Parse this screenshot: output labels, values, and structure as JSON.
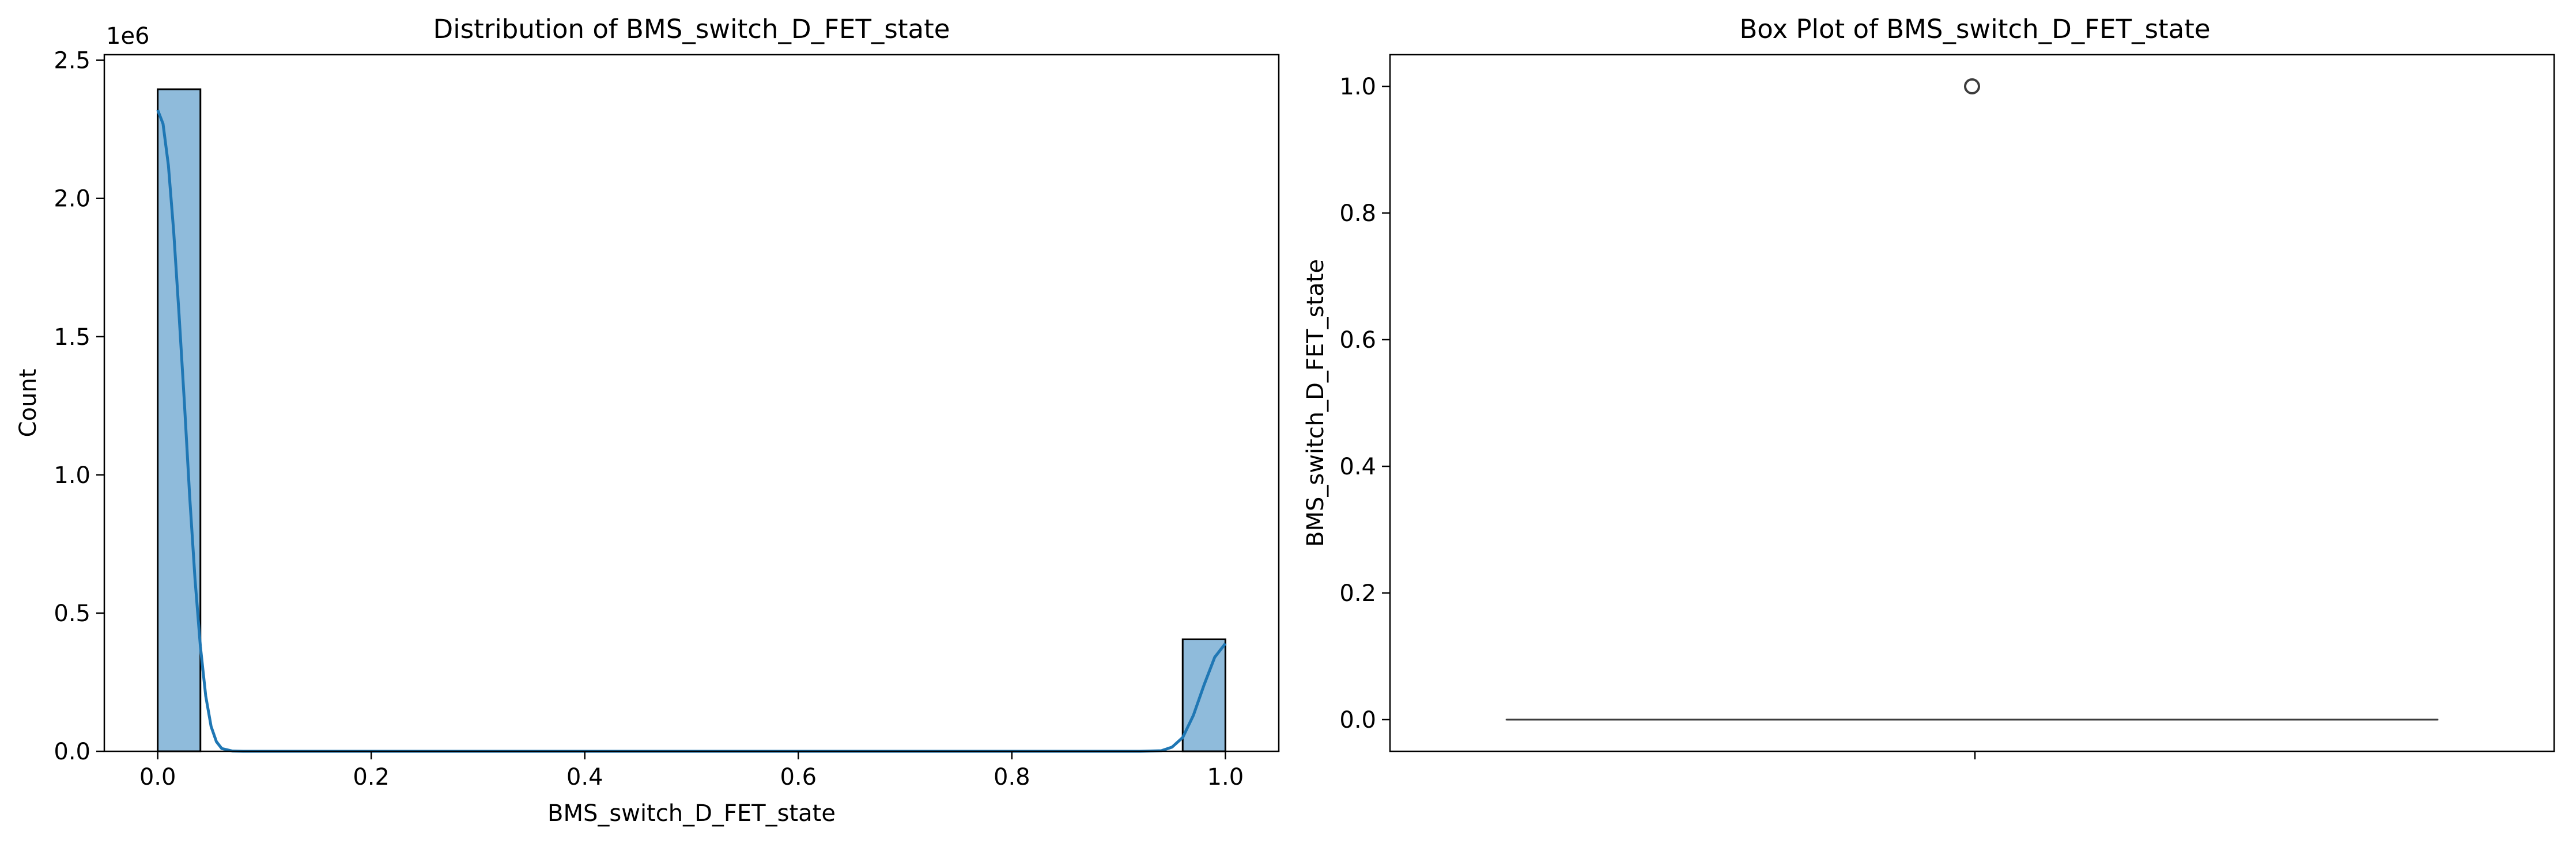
{
  "chart_data": [
    {
      "type": "bar",
      "subtype": "histogram",
      "title": "Distribution of BMS_switch_D_FET_state",
      "xlabel": "BMS_switch_D_FET_state",
      "ylabel": "Count",
      "offset_text": "1e6",
      "xlim": [
        -0.05,
        1.05
      ],
      "ylim": [
        0,
        2520000
      ],
      "x_ticks": [
        0.0,
        0.2,
        0.4,
        0.6,
        0.8,
        1.0
      ],
      "x_tick_labels": [
        "0.0",
        "0.2",
        "0.4",
        "0.6",
        "0.8",
        "1.0"
      ],
      "y_ticks": [
        0,
        500000,
        1000000,
        1500000,
        2000000,
        2500000
      ],
      "y_tick_labels": [
        "0.0",
        "0.5",
        "1.0",
        "1.5",
        "2.0",
        "2.5"
      ],
      "bins": [
        {
          "x0": 0.0,
          "x1": 0.04,
          "count": 2395000
        },
        {
          "x0": 0.96,
          "x1": 1.0,
          "count": 405000
        }
      ],
      "kde": [
        [
          0.0,
          2320000
        ],
        [
          0.005,
          2270000
        ],
        [
          0.01,
          2120000
        ],
        [
          0.015,
          1880000
        ],
        [
          0.02,
          1580000
        ],
        [
          0.025,
          1260000
        ],
        [
          0.03,
          920000
        ],
        [
          0.035,
          620000
        ],
        [
          0.04,
          380000
        ],
        [
          0.045,
          200000
        ],
        [
          0.05,
          90000
        ],
        [
          0.055,
          35000
        ],
        [
          0.06,
          10000
        ],
        [
          0.07,
          1000
        ],
        [
          0.08,
          0
        ],
        [
          0.92,
          0
        ],
        [
          0.94,
          2000
        ],
        [
          0.95,
          15000
        ],
        [
          0.96,
          50000
        ],
        [
          0.97,
          130000
        ],
        [
          0.98,
          240000
        ],
        [
          0.99,
          340000
        ],
        [
          1.0,
          390000
        ]
      ],
      "grid": false,
      "colors": {
        "bar_fill": "#8fbbdb",
        "bar_edge": "#000000",
        "kde_line": "#1f77b4"
      }
    },
    {
      "type": "box",
      "title": "Box Plot of BMS_switch_D_FET_state",
      "xlabel": "",
      "ylabel": "BMS_switch_D_FET_state",
      "ylim": [
        -0.05,
        1.05
      ],
      "y_ticks": [
        0.0,
        0.2,
        0.4,
        0.6,
        0.8,
        1.0
      ],
      "y_tick_labels": [
        "0.0",
        "0.2",
        "0.4",
        "0.6",
        "0.8",
        "1.0"
      ],
      "box": {
        "min": 0.0,
        "q1": 0.0,
        "median": 0.0,
        "q3": 0.0,
        "max": 0.0
      },
      "outliers": [
        1.0
      ],
      "grid": false,
      "colors": {
        "box_line": "#3d3d3d",
        "outlier_edge": "#3d3d3d"
      }
    }
  ]
}
